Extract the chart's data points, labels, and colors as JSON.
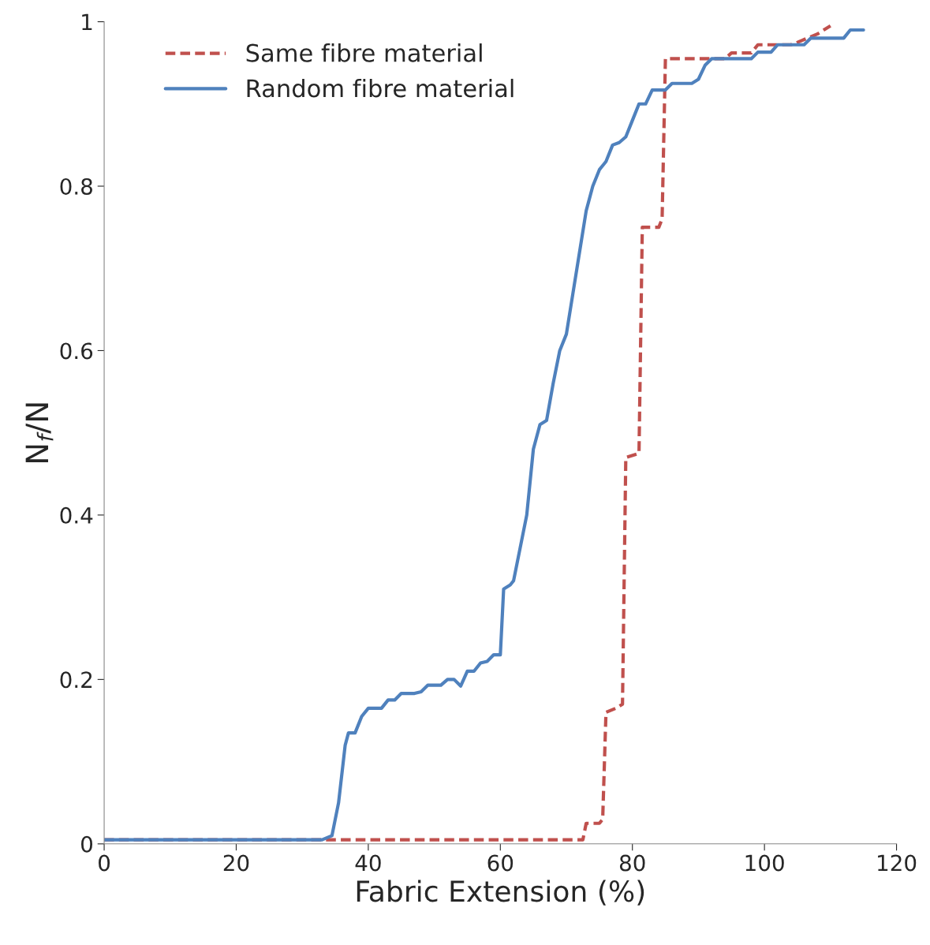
{
  "chart_data": {
    "type": "line",
    "xlabel": "Fabric Extension (%)",
    "ylabel": "N$_{f}$/N",
    "xlim": [
      0,
      120
    ],
    "xticks": [
      0,
      20,
      40,
      60,
      80,
      100,
      120
    ],
    "ylim": [
      0,
      1
    ],
    "yticks": [
      0,
      0.2,
      0.4,
      0.6,
      0.8,
      1
    ],
    "grid": false,
    "legend": "top left",
    "series": [
      {
        "name": "Same fibre material",
        "color": "#c0504d",
        "line_style": "dashed",
        "x": [
          0,
          72.5,
          73,
          75,
          75.5,
          76,
          77.5,
          78.5,
          79,
          81,
          81.5,
          84,
          84.5,
          85,
          90,
          94,
          95,
          98,
          99,
          104,
          105,
          108,
          110
        ],
        "values": [
          0.005,
          0.005,
          0.025,
          0.025,
          0.03,
          0.16,
          0.165,
          0.17,
          0.47,
          0.475,
          0.75,
          0.75,
          0.76,
          0.955,
          0.955,
          0.955,
          0.962,
          0.962,
          0.972,
          0.972,
          0.975,
          0.985,
          0.995
        ]
      },
      {
        "name": "Random fibre material",
        "color": "#4f81bd",
        "line_style": "solid",
        "x": [
          0,
          33,
          34.5,
          35.5,
          36.5,
          37,
          38,
          39,
          40,
          42,
          43,
          44,
          45,
          47,
          48,
          49,
          51,
          52,
          53,
          54,
          55,
          56,
          57,
          58,
          59,
          60,
          60.5,
          61.5,
          62,
          63,
          64,
          65,
          66,
          67,
          68,
          69,
          70,
          71,
          72,
          73,
          74,
          75,
          76,
          77,
          78,
          79,
          80,
          81,
          82,
          83,
          85,
          86,
          89,
          90,
          91,
          92,
          98,
          99,
          101,
          102,
          106,
          107,
          112,
          113,
          115
        ],
        "values": [
          0.005,
          0.005,
          0.01,
          0.05,
          0.12,
          0.135,
          0.135,
          0.155,
          0.165,
          0.165,
          0.175,
          0.175,
          0.183,
          0.183,
          0.185,
          0.193,
          0.193,
          0.2,
          0.2,
          0.192,
          0.21,
          0.21,
          0.22,
          0.222,
          0.23,
          0.23,
          0.31,
          0.315,
          0.32,
          0.36,
          0.4,
          0.48,
          0.51,
          0.515,
          0.56,
          0.6,
          0.62,
          0.67,
          0.72,
          0.77,
          0.8,
          0.82,
          0.83,
          0.85,
          0.853,
          0.86,
          0.88,
          0.9,
          0.9,
          0.917,
          0.917,
          0.925,
          0.925,
          0.93,
          0.947,
          0.955,
          0.955,
          0.963,
          0.963,
          0.972,
          0.972,
          0.98,
          0.98,
          0.99,
          0.99
        ]
      }
    ]
  }
}
